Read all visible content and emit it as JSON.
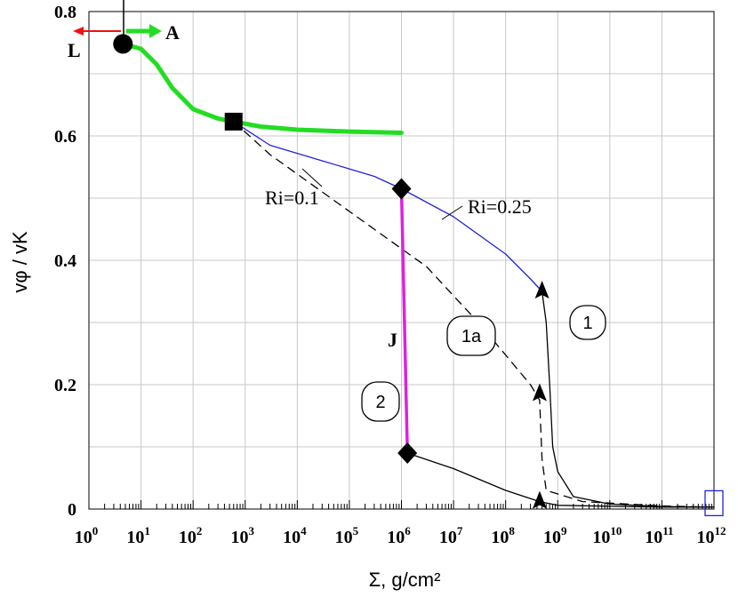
{
  "chart_data": {
    "type": "line",
    "x_scale": "log",
    "xlim": [
      1,
      1000000000000
    ],
    "ylim": [
      0,
      0.8
    ],
    "grid": true,
    "xlabel": "Σ, g/cm²",
    "ylabel": "vφ / vK",
    "x_ticks": [
      {
        "base": "10",
        "exp": "0",
        "value": 1
      },
      {
        "base": "10",
        "exp": "1",
        "value": 10
      },
      {
        "base": "10",
        "exp": "2",
        "value": 100
      },
      {
        "base": "10",
        "exp": "3",
        "value": 1000
      },
      {
        "base": "10",
        "exp": "4",
        "value": 10000
      },
      {
        "base": "10",
        "exp": "5",
        "value": 100000
      },
      {
        "base": "10",
        "exp": "6",
        "value": 1000000
      },
      {
        "base": "10",
        "exp": "7",
        "value": 10000000
      },
      {
        "base": "10",
        "exp": "8",
        "value": 100000000
      },
      {
        "base": "10",
        "exp": "9",
        "value": 1000000000
      },
      {
        "base": "10",
        "exp": "10",
        "value": 10000000000
      },
      {
        "base": "10",
        "exp": "11",
        "value": 100000000000
      },
      {
        "base": "10",
        "exp": "12",
        "value": 1000000000000
      }
    ],
    "y_ticks": [
      {
        "label": "0",
        "value": 0
      },
      {
        "label": "0.2",
        "value": 0.2
      },
      {
        "label": "0.4",
        "value": 0.4
      },
      {
        "label": "0.6",
        "value": 0.6
      },
      {
        "label": "0.8",
        "value": 0.8
      }
    ],
    "series": [
      {
        "id": "green",
        "color": "#22dd22",
        "style": "solid-thick",
        "x": [
          4.5,
          10,
          20,
          40,
          100,
          300,
          600,
          2000,
          10000,
          100000,
          1000000
        ],
        "y": [
          0.748,
          0.74,
          0.715,
          0.677,
          0.643,
          0.628,
          0.623,
          0.615,
          0.61,
          0.607,
          0.605
        ]
      },
      {
        "id": "ri025",
        "color": "#2222dd",
        "style": "solid-thin",
        "x": [
          600,
          3000,
          30000,
          300000,
          1000000,
          10000000,
          100000000,
          300000000,
          500000000
        ],
        "y": [
          0.623,
          0.585,
          0.56,
          0.535,
          0.515,
          0.47,
          0.41,
          0.37,
          0.35
        ]
      },
      {
        "id": "ri01",
        "color": "#000000",
        "style": "dashed",
        "x": [
          600,
          3000,
          30000,
          300000,
          3000000,
          30000000,
          300000000,
          450000000,
          500000000,
          600000000,
          3000000000,
          100000000000,
          1000000000000
        ],
        "y": [
          0.623,
          0.57,
          0.51,
          0.45,
          0.39,
          0.3,
          0.2,
          0.175,
          0.08,
          0.03,
          0.012,
          0.005,
          0.003
        ]
      },
      {
        "id": "branch-1",
        "color": "#000000",
        "style": "solid-thin",
        "x": [
          500000000,
          600000000,
          700000000,
          800000000,
          1000000000,
          2000000000,
          10000000000,
          100000000000,
          1000000000000
        ],
        "y": [
          0.35,
          0.3,
          0.2,
          0.1,
          0.06,
          0.02,
          0.008,
          0.004,
          0.003
        ]
      },
      {
        "id": "branch-2",
        "color": "#000000",
        "style": "solid-thin",
        "x": [
          1300000,
          10000000,
          100000000,
          450000000,
          1000000000,
          100000000000,
          1000000000000
        ],
        "y": [
          0.09,
          0.065,
          0.03,
          0.012,
          0.006,
          0.003,
          0.003
        ]
      },
      {
        "id": "jump-J",
        "color": "#dd22dd",
        "style": "solid-thick",
        "x": [
          1000000,
          1300000
        ],
        "y": [
          0.515,
          0.09
        ]
      }
    ],
    "markers": [
      {
        "shape": "circle",
        "x": 4.5,
        "y": 0.748
      },
      {
        "shape": "square",
        "x": 600,
        "y": 0.623
      },
      {
        "shape": "diamond",
        "x": 1000000,
        "y": 0.515
      },
      {
        "shape": "diamond",
        "x": 1300000,
        "y": 0.09
      },
      {
        "shape": "triangle",
        "x": 500000000,
        "y": 0.35
      },
      {
        "shape": "triangle",
        "x": 450000000,
        "y": 0.185
      },
      {
        "shape": "triangle",
        "x": 450000000,
        "y": 0.012
      },
      {
        "shape": "open-square",
        "x": 1000000000000,
        "y": 0.008
      }
    ],
    "annotations": {
      "L": "L",
      "A": "A",
      "J": "J",
      "ri01": "Ri=0.1",
      "ri025": "Ri=0.25",
      "bubble_1": "1",
      "bubble_1a": "1a",
      "bubble_2": "2"
    },
    "colors": {
      "accent_green": "#22dd22",
      "blue": "#2222dd",
      "magenta": "#dd22dd",
      "red": "#ee1111"
    }
  }
}
